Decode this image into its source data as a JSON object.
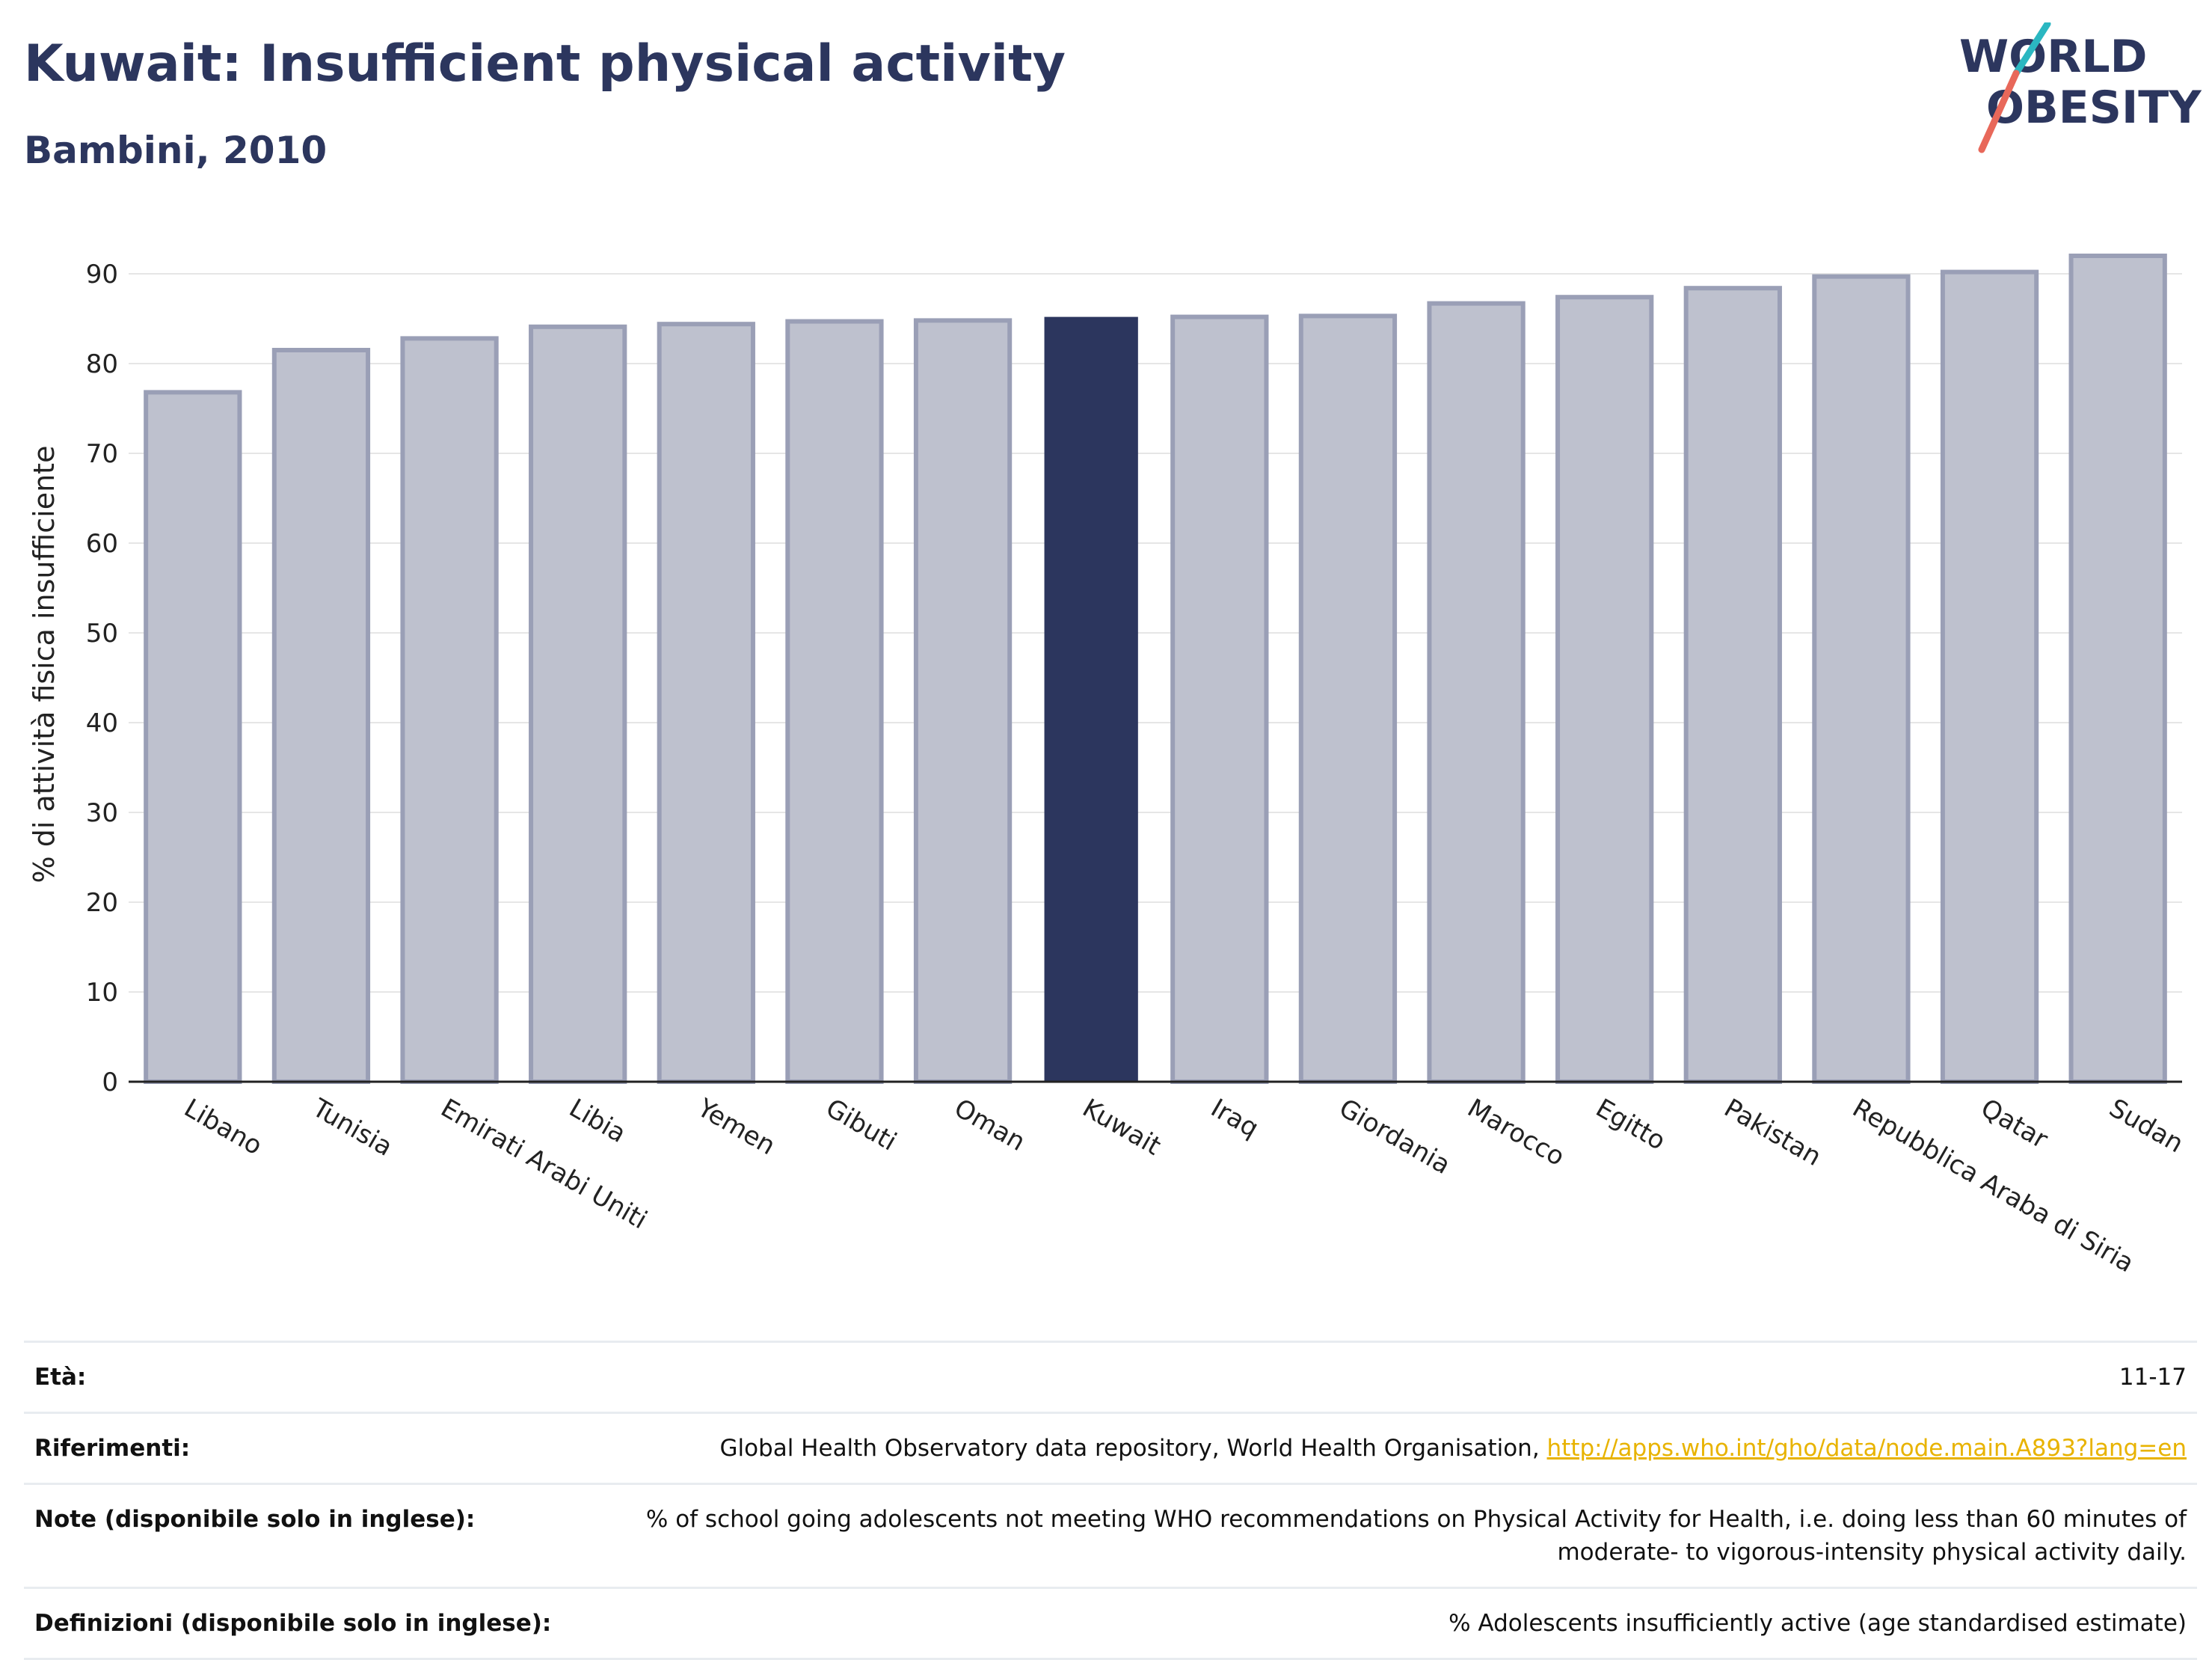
{
  "header": {
    "title": "Kuwait: Insufficient physical activity",
    "subtitle": "Bambini, 2010"
  },
  "logo": {
    "line1": "WORLD",
    "line2": "OBESITY",
    "accent_colors": [
      "#2bb7c1",
      "#e8685a"
    ]
  },
  "chart_data": {
    "type": "bar",
    "categories": [
      "Libano",
      "Tunisia",
      "Emirati Arabi Uniti",
      "Libia",
      "Yemen",
      "Gibuti",
      "Oman",
      "Kuwait",
      "Iraq",
      "Giordania",
      "Marocco",
      "Egitto",
      "Pakistan",
      "Repubblica Araba di Siria",
      "Qatar",
      "Sudan"
    ],
    "values": [
      76.8,
      81.5,
      82.8,
      84.1,
      84.4,
      84.7,
      84.8,
      85.2,
      85.2,
      85.3,
      86.7,
      87.4,
      88.4,
      89.7,
      90.2,
      92.0
    ],
    "highlight": "Kuwait",
    "xlabel": "",
    "ylabel": "% di attività fisica insufficiente",
    "ylim": [
      0,
      93
    ],
    "yticks": [
      0,
      10,
      20,
      30,
      40,
      50,
      60,
      70,
      80,
      90
    ],
    "grid": true,
    "colors": {
      "bar": "#bec1ce",
      "bar_border": "#9a9fb6",
      "highlight": "#2c365e"
    }
  },
  "info_table": {
    "rows": [
      {
        "label": "Età:",
        "value": "11-17"
      },
      {
        "label": "Riferimenti:",
        "value": "Global Health Observatory data repository, World Health Organisation, ",
        "link": "http://apps.who.int/gho/data/node.main.A893?lang=en"
      },
      {
        "label": "Note (disponibile solo in inglese):",
        "value": "% of school going adolescents not meeting WHO recommendations on Physical Activity for Health, i.e. doing less than 60 minutes of moderate- to vigorous-intensity physical activity daily."
      },
      {
        "label": "Definizioni (disponibile solo in inglese):",
        "value": "% Adolescents insufficiently active (age standardised estimate)"
      }
    ]
  }
}
